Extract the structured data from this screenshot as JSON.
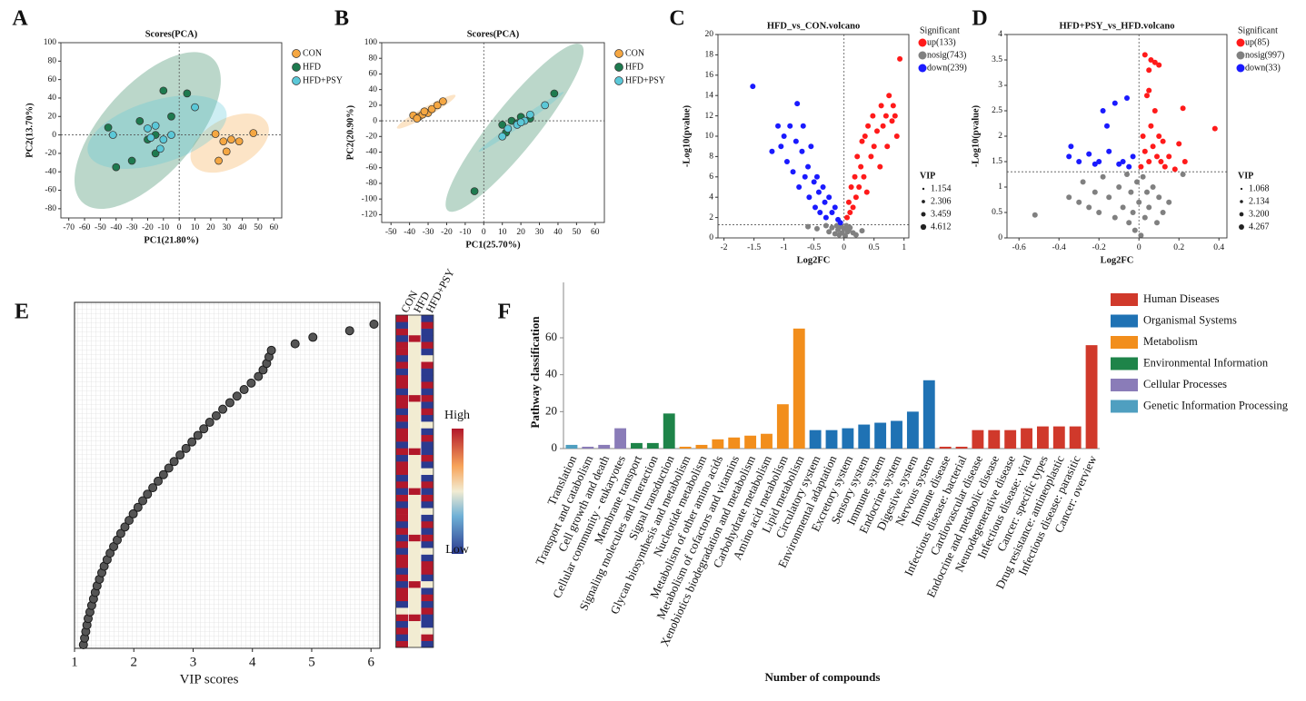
{
  "chart_data": [
    {
      "type": "scatter",
      "panel": "A",
      "title": "Scores(PCA)",
      "xlabel": "PC1(21.80%)",
      "ylabel": "PC2(13.70%)",
      "xlim": [
        -75,
        65
      ],
      "ylim": [
        -90,
        100
      ],
      "xticks": [
        -70,
        -60,
        -50,
        -40,
        -30,
        -20,
        -10,
        0,
        10,
        20,
        30,
        40,
        50,
        60
      ],
      "yticks": [
        -80,
        -60,
        -40,
        -20,
        0,
        20,
        40,
        60,
        80,
        100
      ],
      "ellipses": true,
      "ref_lines": {
        "x": [
          0
        ],
        "y": [
          0
        ]
      },
      "series": [
        {
          "name": "CON",
          "color": "#f5a742",
          "x": [
            23,
            28,
            33,
            38,
            30,
            25,
            47
          ],
          "values": [
            1,
            -7,
            -5,
            -7,
            -18,
            -28,
            2
          ]
        },
        {
          "name": "HFD",
          "color": "#1e7a4f",
          "x": [
            -45,
            -40,
            -30,
            -25,
            -20,
            -15,
            -10,
            5,
            -5,
            -15
          ],
          "values": [
            8,
            -35,
            -28,
            15,
            -5,
            0,
            48,
            45,
            20,
            -20
          ]
        },
        {
          "name": "HFD+PSY",
          "color": "#5bc8d8",
          "x": [
            -42,
            -20,
            -15,
            -12,
            -10,
            -5,
            10,
            -18
          ],
          "values": [
            0,
            7,
            10,
            -15,
            -5,
            0,
            30,
            -3
          ]
        }
      ]
    },
    {
      "type": "scatter",
      "panel": "B",
      "title": "Scores(PCA)",
      "xlabel": "PC1(25.70%)",
      "ylabel": "PC2(20.90%)",
      "xlim": [
        -55,
        65
      ],
      "ylim": [
        -130,
        100
      ],
      "xticks": [
        -50,
        -40,
        -30,
        -20,
        -10,
        0,
        10,
        20,
        30,
        40,
        50,
        60
      ],
      "yticks": [
        -120,
        -100,
        -80,
        -60,
        -40,
        -20,
        0,
        20,
        40,
        60,
        80,
        100
      ],
      "ellipses": true,
      "ref_lines": {
        "x": [
          0
        ],
        "y": [
          0
        ]
      },
      "series": [
        {
          "name": "CON",
          "color": "#f5a742",
          "x": [
            -38,
            -35,
            -33,
            -30,
            -28,
            -25,
            -22,
            -36,
            -32
          ],
          "values": [
            7,
            5,
            8,
            10,
            15,
            20,
            25,
            3,
            12
          ]
        },
        {
          "name": "HFD",
          "color": "#1e7a4f",
          "x": [
            -5,
            10,
            15,
            18,
            20,
            25,
            38,
            12
          ],
          "values": [
            -90,
            -5,
            0,
            -3,
            5,
            3,
            35,
            -15
          ]
        },
        {
          "name": "HFD+PSY",
          "color": "#5bc8d8",
          "x": [
            10,
            13,
            18,
            22,
            25,
            33,
            20
          ],
          "values": [
            -20,
            -10,
            -5,
            0,
            8,
            20,
            -2
          ]
        }
      ]
    },
    {
      "type": "scatter",
      "panel": "C",
      "title": "HFD_vs_CON.volcano",
      "xlabel": "Log2FC",
      "ylabel": "-Log10(pvalue)",
      "xlim": [
        -2.1,
        1.08
      ],
      "ylim": [
        0,
        20
      ],
      "xticks": [
        -2,
        -1.5,
        -1,
        -0.5,
        0,
        0.5,
        1
      ],
      "yticks": [
        0,
        2,
        4,
        6,
        8,
        10,
        12,
        14,
        16,
        18,
        20
      ],
      "ref_lines": {
        "x": [
          0
        ],
        "y": [
          1.3
        ]
      },
      "legend_title": "Significant",
      "size_legend_title": "VIP",
      "size_legend": [
        {
          "value": 1.154,
          "label": "1.154"
        },
        {
          "value": 2.306,
          "label": "2.306"
        },
        {
          "value": 3.459,
          "label": "3.459"
        },
        {
          "value": 4.612,
          "label": "4.612"
        }
      ],
      "series": [
        {
          "name": "up(133)",
          "color": "#ff1a1a",
          "x": [
            0.05,
            0.08,
            0.1,
            0.12,
            0.15,
            0.18,
            0.2,
            0.22,
            0.25,
            0.28,
            0.3,
            0.33,
            0.35,
            0.38,
            0.4,
            0.45,
            0.48,
            0.5,
            0.55,
            0.6,
            0.62,
            0.65,
            0.7,
            0.72,
            0.75,
            0.8,
            0.82,
            0.85,
            0.88,
            0.93
          ],
          "values": [
            2,
            3.5,
            2.5,
            5,
            3,
            6,
            4,
            8,
            5,
            7,
            9.5,
            6,
            10,
            4.5,
            11,
            8,
            12,
            9,
            10.5,
            7,
            13,
            11,
            12,
            9,
            14,
            11.5,
            13,
            12,
            10,
            17.6
          ]
        },
        {
          "name": "nosig(743)",
          "color": "#808080",
          "x": [
            -0.6,
            -0.45,
            -0.3,
            -0.25,
            -0.2,
            -0.15,
            -0.12,
            -0.1,
            -0.08,
            -0.05,
            -0.03,
            0,
            0.02,
            0.04,
            0.06,
            0.08,
            0.1,
            0.15,
            0.2,
            0.3
          ],
          "values": [
            1.1,
            0.9,
            1.2,
            0.6,
            1.0,
            0.4,
            1.2,
            0.8,
            0.3,
            1.1,
            0.5,
            0.9,
            0.2,
            1.2,
            0.6,
            0.8,
            1.0,
            0.5,
            0.3,
            0.7
          ]
        },
        {
          "name": "down(239)",
          "color": "#1a1aff",
          "x": [
            -1.52,
            -1.2,
            -1.1,
            -1.05,
            -1.0,
            -0.95,
            -0.9,
            -0.85,
            -0.8,
            -0.78,
            -0.75,
            -0.7,
            -0.68,
            -0.65,
            -0.6,
            -0.58,
            -0.55,
            -0.5,
            -0.48,
            -0.45,
            -0.42,
            -0.4,
            -0.35,
            -0.32,
            -0.3,
            -0.25,
            -0.2,
            -0.15,
            -0.1,
            -0.06
          ],
          "values": [
            14.9,
            8.5,
            11,
            9,
            10,
            7.5,
            11,
            6.5,
            9.5,
            13.2,
            5,
            8.5,
            11,
            6,
            7,
            4,
            9,
            5.5,
            3,
            6,
            4.5,
            2.5,
            5,
            3.5,
            2,
            4,
            2.5,
            3,
            1.8,
            1.5
          ]
        }
      ]
    },
    {
      "type": "scatter",
      "panel": "D",
      "title": "HFD+PSY_vs_HFD.volcano",
      "xlabel": "Log2FC",
      "ylabel": "-Log10(pvalue)",
      "xlim": [
        -0.66,
        0.44
      ],
      "ylim": [
        0,
        4
      ],
      "xticks": [
        -0.6,
        -0.4,
        -0.2,
        0,
        0.2,
        0.4
      ],
      "yticks": [
        0,
        0.5,
        1,
        1.5,
        2,
        2.5,
        3,
        3.5,
        4
      ],
      "ref_lines": {
        "x": [
          0
        ],
        "y": [
          1.3
        ]
      },
      "legend_title": "Significant",
      "size_legend_title": "VIP",
      "size_legend": [
        {
          "value": 1.068,
          "label": "1.068"
        },
        {
          "value": 2.134,
          "label": "2.134"
        },
        {
          "value": 3.2,
          "label": "3.200"
        },
        {
          "value": 4.267,
          "label": "4.267"
        }
      ],
      "series": [
        {
          "name": "up(85)",
          "color": "#ff1a1a",
          "x": [
            0.01,
            0.02,
            0.03,
            0.03,
            0.04,
            0.05,
            0.05,
            0.06,
            0.06,
            0.07,
            0.08,
            0.08,
            0.09,
            0.1,
            0.1,
            0.11,
            0.12,
            0.13,
            0.15,
            0.18,
            0.2,
            0.22,
            0.23,
            0.38,
            0.05
          ],
          "values": [
            1.4,
            2.0,
            3.6,
            1.7,
            2.8,
            3.3,
            1.5,
            2.2,
            3.5,
            1.8,
            2.5,
            3.45,
            1.6,
            3.4,
            2.0,
            1.5,
            1.9,
            1.4,
            1.6,
            1.35,
            1.85,
            2.55,
            1.5,
            2.15,
            2.9
          ]
        },
        {
          "name": "nosig(997)",
          "color": "#808080",
          "x": [
            -0.52,
            -0.35,
            -0.3,
            -0.28,
            -0.25,
            -0.22,
            -0.2,
            -0.18,
            -0.15,
            -0.12,
            -0.1,
            -0.08,
            -0.06,
            -0.05,
            -0.04,
            -0.03,
            -0.02,
            -0.01,
            0,
            0.01,
            0.02,
            0.03,
            0.04,
            0.05,
            0.07,
            0.09,
            0.1,
            0.12,
            0.15,
            0.22
          ],
          "values": [
            0.45,
            0.8,
            0.7,
            1.1,
            0.6,
            0.9,
            0.5,
            1.2,
            0.8,
            0.4,
            1.0,
            0.6,
            1.25,
            0.3,
            0.9,
            0.5,
            0.15,
            1.1,
            0.7,
            0.05,
            1.2,
            0.4,
            0.9,
            0.6,
            1.0,
            0.3,
            0.8,
            0.5,
            0.7,
            1.25
          ]
        },
        {
          "name": "down(33)",
          "color": "#1a1aff",
          "x": [
            -0.35,
            -0.34,
            -0.3,
            -0.25,
            -0.22,
            -0.2,
            -0.18,
            -0.15,
            -0.12,
            -0.1,
            -0.08,
            -0.06,
            -0.05,
            -0.03,
            -0.16
          ],
          "values": [
            1.6,
            1.8,
            1.5,
            1.65,
            1.45,
            1.5,
            2.5,
            1.7,
            2.65,
            1.45,
            1.5,
            2.75,
            1.4,
            1.6,
            2.2
          ]
        }
      ]
    },
    {
      "type": "dot",
      "panel": "E",
      "xlabel": "VIP scores",
      "xlim": [
        1,
        6.15
      ],
      "xticks": [
        1,
        2,
        3,
        4,
        5,
        6
      ],
      "values": [
        1.15,
        1.17,
        1.19,
        1.21,
        1.23,
        1.26,
        1.29,
        1.32,
        1.35,
        1.38,
        1.42,
        1.46,
        1.5,
        1.55,
        1.6,
        1.66,
        1.72,
        1.78,
        1.85,
        1.92,
        1.99,
        2.07,
        2.15,
        2.23,
        2.32,
        2.41,
        2.5,
        2.59,
        2.68,
        2.78,
        2.88,
        2.98,
        3.08,
        3.18,
        3.28,
        3.39,
        3.5,
        3.62,
        3.74,
        3.86,
        3.98,
        4.1,
        4.18,
        4.24,
        4.28,
        4.32,
        4.72,
        5.02,
        5.64,
        6.05
      ],
      "heatmap_columns": [
        "CON",
        "HFD",
        "HFD+PSY"
      ],
      "heatmap": [
        [
          1,
          0,
          -1
        ],
        [
          -1,
          0,
          1
        ],
        [
          1,
          0,
          0
        ],
        [
          -1,
          0,
          -1
        ],
        [
          1,
          1,
          -1
        ],
        [
          0,
          0,
          1
        ],
        [
          -1,
          0,
          -1
        ],
        [
          1,
          0,
          1
        ],
        [
          1,
          0,
          -1
        ],
        [
          -1,
          1,
          0
        ],
        [
          1,
          0,
          -1
        ],
        [
          -1,
          0,
          1
        ],
        [
          1,
          0,
          1
        ],
        [
          1,
          0,
          -1
        ],
        [
          -1,
          0,
          0
        ],
        [
          1,
          0,
          -1
        ],
        [
          -1,
          1,
          1
        ],
        [
          1,
          0,
          -1
        ],
        [
          -1,
          0,
          1
        ],
        [
          1,
          0,
          -1
        ],
        [
          1,
          0,
          0
        ],
        [
          -1,
          0,
          -1
        ],
        [
          1,
          0,
          1
        ],
        [
          -1,
          1,
          -1
        ],
        [
          1,
          0,
          1
        ],
        [
          -1,
          0,
          -1
        ],
        [
          1,
          0,
          0
        ],
        [
          1,
          0,
          -1
        ],
        [
          -1,
          0,
          1
        ],
        [
          1,
          1,
          -1
        ],
        [
          -1,
          0,
          -1
        ],
        [
          1,
          0,
          1
        ],
        [
          1,
          0,
          -1
        ],
        [
          -1,
          0,
          0
        ],
        [
          1,
          0,
          -1
        ],
        [
          -1,
          0,
          1
        ],
        [
          1,
          0,
          -1
        ],
        [
          1,
          1,
          1
        ],
        [
          -1,
          0,
          -1
        ],
        [
          1,
          0,
          1
        ],
        [
          1,
          0,
          -1
        ],
        [
          -1,
          0,
          -1
        ],
        [
          1,
          0,
          1
        ],
        [
          -1,
          0,
          0
        ],
        [
          1,
          0,
          -1
        ],
        [
          1,
          0,
          1
        ],
        [
          -1,
          1,
          -1
        ],
        [
          1,
          0,
          -1
        ],
        [
          -1,
          0,
          1
        ],
        [
          1,
          0,
          -1
        ]
      ],
      "colorbar_labels": {
        "high": "High",
        "low": "Low"
      }
    },
    {
      "type": "bar",
      "panel": "F",
      "ylabel": "Pathway classification",
      "xlabel": "Number of compounds",
      "ylim": [
        0,
        90
      ],
      "yticks": [
        0,
        20,
        40,
        60
      ],
      "categories": [
        "Translation",
        "Transport and catabolism",
        "Cell growth and death",
        "Cellular community - eukaryotes",
        "Membrane transport",
        "Signaling molecules and interaction",
        "Signal transduction",
        "Glycan biosynthesis and metabolism",
        "Nucleotide metabolism",
        "Metabolism of other amino acids",
        "Metabolism of cofactors and vitamins",
        "Xenobiotics biodegradation and metabolism",
        "Carbohydrate metabolism",
        "Amino acid metabolism",
        "Lipid metabolism",
        "Circulatory system",
        "Environmental adaptation",
        "Excretory system",
        "Sensory system",
        "Immune system",
        "Endocrine system",
        "Digestive system",
        "Nervous system",
        "Immune disease",
        "Infectious disease: bacterial",
        "Cardiovascular disease",
        "Endocrine and metabolic disease",
        "Neurodegenerative disease",
        "Infectious disease: viral",
        "Cancer: specific types",
        "Drug resistance: antineoplastic",
        "Infectious disease: parasitic",
        "Cancer: overview"
      ],
      "values": [
        2,
        1,
        2,
        11,
        3,
        3,
        19,
        1,
        2,
        5,
        6,
        7,
        8,
        24,
        65,
        10,
        10,
        11,
        13,
        14,
        15,
        20,
        37,
        1,
        1,
        10,
        10,
        10,
        11,
        12,
        12,
        12,
        56
      ],
      "colors": [
        "#4f9fc0",
        "#8a7cb8",
        "#8a7cb8",
        "#8a7cb8",
        "#1e8449",
        "#1e8449",
        "#1e8449",
        "#f28e1c",
        "#f28e1c",
        "#f28e1c",
        "#f28e1c",
        "#f28e1c",
        "#f28e1c",
        "#f28e1c",
        "#f28e1c",
        "#1f72b4",
        "#1f72b4",
        "#1f72b4",
        "#1f72b4",
        "#1f72b4",
        "#1f72b4",
        "#1f72b4",
        "#1f72b4",
        "#d0392b",
        "#d0392b",
        "#d0392b",
        "#d0392b",
        "#d0392b",
        "#d0392b",
        "#d0392b",
        "#d0392b",
        "#d0392b",
        "#d0392b"
      ],
      "legend_items": [
        {
          "name": "Human Diseases",
          "color": "#d0392b"
        },
        {
          "name": "Organismal Systems",
          "color": "#1f72b4"
        },
        {
          "name": "Metabolism",
          "color": "#f28e1c"
        },
        {
          "name": "Environmental Information",
          "color": "#1e8449"
        },
        {
          "name": "Cellular Processes",
          "color": "#8a7cb8"
        },
        {
          "name": "Genetic Information Processing",
          "color": "#4f9fc0"
        }
      ]
    }
  ]
}
